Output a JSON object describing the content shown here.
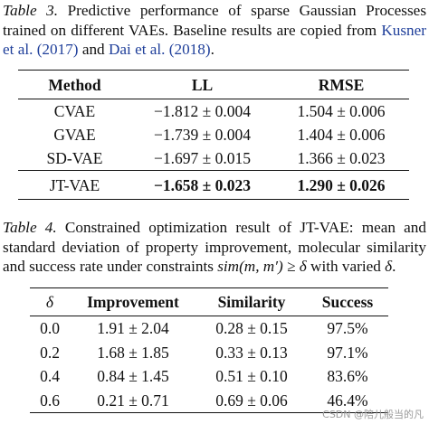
{
  "table3": {
    "caption": {
      "label": "Table 3.",
      "text_a": " Predictive performance of sparse Gaussian Processes trained on different VAEs. Baseline results are copied from ",
      "cite1": "Kusner et al. (2017)",
      "text_b": " and ",
      "cite2": "Dai et al. (2018)",
      "text_c": "."
    },
    "headers": [
      "Method",
      "LL",
      "RMSE"
    ],
    "rows": [
      {
        "method": "CVAE",
        "ll": "−1.812 ± 0.004",
        "rmse": "1.504 ± 0.006"
      },
      {
        "method": "GVAE",
        "ll": "−1.739 ± 0.004",
        "rmse": "1.404 ± 0.006"
      },
      {
        "method": "SD-VAE",
        "ll": "−1.697 ± 0.015",
        "rmse": "1.366 ± 0.023"
      },
      {
        "method": "JT-VAE",
        "ll": "−1.658 ± 0.023",
        "rmse": "1.290 ± 0.026"
      }
    ]
  },
  "table4": {
    "caption": {
      "label": "Table 4.",
      "text_a": " Constrained optimization result of JT-VAE: mean and standard deviation of property improvement, molecular similarity and success rate under constraints ",
      "math": "sim(m, m′) ≥ δ",
      "text_b": " with varied ",
      "math2": "δ",
      "text_c": "."
    },
    "headers": [
      "δ",
      "Improvement",
      "Similarity",
      "Success"
    ],
    "rows": [
      {
        "delta": "0.0",
        "improvement": "1.91 ± 2.04",
        "similarity": "0.28 ± 0.15",
        "success": "97.5%"
      },
      {
        "delta": "0.2",
        "improvement": "1.68 ± 1.85",
        "similarity": "0.33 ± 0.13",
        "success": "97.1%"
      },
      {
        "delta": "0.4",
        "improvement": "0.84 ± 1.45",
        "similarity": "0.51 ± 0.10",
        "success": "83.6%"
      },
      {
        "delta": "0.6",
        "improvement": "0.21 ± 0.71",
        "similarity": "0.69 ± 0.06",
        "success": "46.4%"
      }
    ]
  },
  "watermark": "CSDN @陪儿般当的凡"
}
